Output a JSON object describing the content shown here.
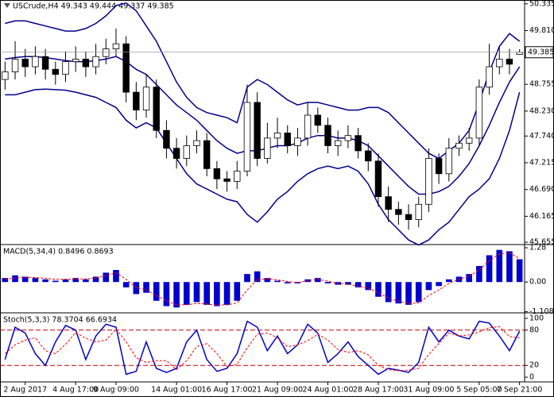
{
  "chart_data": [
    {
      "type": "candlestick",
      "title": "USCrude,H4  49.343 49.444 49.337 49.385",
      "categories": [
        null,
        null,
        "2 Aug 2017",
        null,
        null,
        null,
        null,
        "4 Aug 17:00",
        null,
        null,
        null,
        "9 Aug 09:00",
        null,
        null,
        null,
        null,
        null,
        "14 Aug 01:00",
        null,
        null,
        null,
        null,
        "16 Aug 17:00",
        null,
        null,
        null,
        null,
        "21 Aug 09:00",
        null,
        null,
        null,
        null,
        "24 Aug 01:00",
        null,
        null,
        null,
        null,
        "28 Aug 17:00",
        null,
        null,
        null,
        null,
        "31 Aug 09:00",
        null,
        null,
        null,
        null,
        "5 Sep 05:00",
        null,
        null,
        null,
        "7 Sep 21:00"
      ],
      "open": [
        48.85,
        49.0,
        49.25,
        49.1,
        49.3,
        49.05,
        48.95,
        49.2,
        49.25,
        49.1,
        49.3,
        49.45,
        49.55,
        48.6,
        48.25,
        48.7,
        47.85,
        47.5,
        47.3,
        47.55,
        47.65,
        47.1,
        46.9,
        46.85,
        47.05,
        48.4,
        47.3,
        47.7,
        47.8,
        47.55,
        47.7,
        48.15,
        47.95,
        47.55,
        47.65,
        47.75,
        47.45,
        47.25,
        46.55,
        46.3,
        46.2,
        46.1,
        46.4,
        47.3,
        47.0,
        47.5,
        47.6,
        47.7,
        48.7,
        49.1,
        49.25,
        49.343
      ],
      "high": [
        49.2,
        49.6,
        49.45,
        49.5,
        49.45,
        49.2,
        49.4,
        49.5,
        49.4,
        49.55,
        49.65,
        49.85,
        49.7,
        48.8,
        48.95,
        48.85,
        48.05,
        47.7,
        47.75,
        47.85,
        47.8,
        47.25,
        47.05,
        47.25,
        48.75,
        48.6,
        48.0,
        48.1,
        47.95,
        47.9,
        48.4,
        48.3,
        48.1,
        47.85,
        47.95,
        47.9,
        47.6,
        47.4,
        46.75,
        46.45,
        46.4,
        46.55,
        47.5,
        47.4,
        47.7,
        47.75,
        47.9,
        48.85,
        49.55,
        49.5,
        49.45,
        49.444
      ],
      "low": [
        48.65,
        48.85,
        48.9,
        48.95,
        48.85,
        48.75,
        48.8,
        49.0,
        48.9,
        48.95,
        49.15,
        49.3,
        48.4,
        48.05,
        48.1,
        47.7,
        47.3,
        47.1,
        47.15,
        47.4,
        46.95,
        46.7,
        46.65,
        46.7,
        46.95,
        47.15,
        47.2,
        47.5,
        47.4,
        47.35,
        47.55,
        47.8,
        47.4,
        47.35,
        47.5,
        47.3,
        47.05,
        46.35,
        46.05,
        46.0,
        45.9,
        45.95,
        46.25,
        46.8,
        46.85,
        47.35,
        47.45,
        47.55,
        48.55,
        48.95,
        48.95,
        49.337
      ],
      "close": [
        49.0,
        49.25,
        49.1,
        49.3,
        49.05,
        48.95,
        49.2,
        49.25,
        49.1,
        49.3,
        49.45,
        49.55,
        48.6,
        48.25,
        48.7,
        47.85,
        47.5,
        47.3,
        47.55,
        47.65,
        47.1,
        46.9,
        46.85,
        47.05,
        48.4,
        47.3,
        47.7,
        47.8,
        47.55,
        47.7,
        48.15,
        47.95,
        47.55,
        47.65,
        47.75,
        47.45,
        47.25,
        46.55,
        46.3,
        46.2,
        46.1,
        46.4,
        47.3,
        47.0,
        47.5,
        47.6,
        47.7,
        48.7,
        49.1,
        49.25,
        49.15,
        49.385
      ],
      "up_color": "#ffffff",
      "down_color": "#000000",
      "series": [
        {
          "color": "#00008b",
          "values": [
            49.95,
            50.0,
            50.0,
            49.95,
            49.9,
            49.85,
            49.8,
            49.8,
            49.85,
            49.95,
            50.1,
            50.3,
            50.35,
            50.2,
            49.9,
            49.6,
            49.2,
            48.8,
            48.5,
            48.3,
            48.2,
            48.15,
            48.1,
            48.0,
            48.7,
            48.85,
            48.75,
            48.6,
            48.45,
            48.35,
            48.4,
            48.4,
            48.35,
            48.3,
            48.25,
            48.25,
            48.3,
            48.3,
            48.2,
            48.0,
            47.8,
            47.6,
            47.4,
            47.3,
            47.45,
            47.6,
            47.85,
            48.4,
            49.0,
            49.5,
            49.75,
            49.6
          ]
        },
        {
          "color": "#00008b",
          "values": [
            49.25,
            49.28,
            49.3,
            49.3,
            49.28,
            49.25,
            49.22,
            49.2,
            49.2,
            49.22,
            49.25,
            49.3,
            49.2,
            49.05,
            48.95,
            48.75,
            48.55,
            48.35,
            48.2,
            48.05,
            47.85,
            47.65,
            47.5,
            47.4,
            47.45,
            47.45,
            47.5,
            47.55,
            47.55,
            47.6,
            47.7,
            47.75,
            47.75,
            47.7,
            47.7,
            47.65,
            47.55,
            47.35,
            47.15,
            46.95,
            46.75,
            46.6,
            46.6,
            46.65,
            46.75,
            46.95,
            47.2,
            47.55,
            47.95,
            48.4,
            48.8,
            49.1
          ]
        },
        {
          "color": "#00008b",
          "values": [
            48.55,
            48.55,
            48.6,
            48.65,
            48.66,
            48.65,
            48.64,
            48.6,
            48.55,
            48.5,
            48.4,
            48.3,
            48.05,
            47.9,
            48.0,
            47.9,
            47.6,
            47.3,
            47.0,
            46.8,
            46.7,
            46.6,
            46.5,
            46.45,
            46.2,
            46.05,
            46.25,
            46.5,
            46.65,
            46.85,
            47.0,
            47.1,
            47.15,
            47.1,
            47.15,
            47.05,
            46.8,
            46.4,
            46.1,
            45.9,
            45.7,
            45.6,
            45.7,
            45.9,
            46.05,
            46.3,
            46.55,
            46.7,
            46.9,
            47.3,
            47.85,
            48.6
          ]
        }
      ],
      "current_price": 49.385,
      "ylim": [
        45.61,
        50.41
      ],
      "yticks": [
        50.335,
        {
          "value": 49.81,
          "label": "49.810"
        },
        48.755,
        {
          "value": 48.23,
          "label": "48.230"
        },
        {
          "value": 47.74,
          "label": "47.740"
        },
        47.215,
        {
          "value": 46.69,
          "label": "46.690"
        },
        46.165,
        45.655
      ]
    },
    {
      "type": "macd",
      "title": "MACD(5,34,4) 0.8496 0.8693",
      "color": "#0000cd",
      "values": [
        0.15,
        0.25,
        0.2,
        0.15,
        0.1,
        0.05,
        0.1,
        0.15,
        0.1,
        0.2,
        0.35,
        0.45,
        -0.2,
        -0.45,
        -0.4,
        -0.7,
        -0.9,
        -0.95,
        -0.85,
        -0.75,
        -0.85,
        -0.9,
        -0.85,
        -0.7,
        0.3,
        0.4,
        0.15,
        0.05,
        -0.05,
        -0.05,
        0.1,
        0.15,
        -0.05,
        -0.1,
        -0.1,
        -0.2,
        -0.3,
        -0.55,
        -0.75,
        -0.8,
        -0.85,
        -0.75,
        -0.3,
        -0.15,
        0.1,
        0.2,
        0.3,
        0.6,
        1.0,
        1.2,
        1.15,
        0.8496
      ],
      "signal": {
        "color": "#ff0000",
        "values": [
          0.1,
          0.15,
          0.18,
          0.17,
          0.14,
          0.1,
          0.1,
          0.12,
          0.12,
          0.15,
          0.25,
          0.35,
          0.1,
          -0.2,
          -0.3,
          -0.5,
          -0.7,
          -0.85,
          -0.85,
          -0.8,
          -0.82,
          -0.86,
          -0.85,
          -0.78,
          -0.3,
          0.1,
          0.12,
          0.08,
          0.02,
          -0.02,
          0.05,
          0.1,
          0.03,
          -0.05,
          -0.08,
          -0.15,
          -0.22,
          -0.4,
          -0.6,
          -0.72,
          -0.8,
          -0.78,
          -0.5,
          -0.3,
          -0.05,
          0.1,
          0.22,
          0.45,
          0.8,
          1.05,
          1.1,
          0.8693
        ]
      },
      "ylim": [
        -1.15,
        1.37
      ],
      "yticks": [
        1.28,
        {
          "value": 0,
          "label": "0.00"
        },
        -1.1086
      ]
    },
    {
      "type": "stochastic",
      "title": "Stoch(5,3,3) 78.3704 66.6934",
      "series": [
        {
          "color": "#0000cd",
          "dashed": false,
          "values": [
            30,
            85,
            75,
            40,
            20,
            60,
            88,
            80,
            30,
            70,
            90,
            85,
            5,
            10,
            60,
            15,
            8,
            15,
            60,
            80,
            30,
            10,
            15,
            40,
            95,
            85,
            45,
            70,
            40,
            55,
            90,
            75,
            25,
            40,
            60,
            35,
            20,
            5,
            15,
            12,
            8,
            25,
            85,
            60,
            80,
            70,
            65,
            95,
            92,
            70,
            45,
            78.3704
          ]
        },
        {
          "color": "#ff0000",
          "dashed": true,
          "values": [
            40,
            55,
            63,
            67,
            45,
            40,
            56,
            76,
            66,
            60,
            63,
            82,
            60,
            33,
            25,
            28,
            28,
            13,
            28,
            52,
            57,
            40,
            18,
            22,
            50,
            73,
            75,
            67,
            52,
            55,
            62,
            73,
            63,
            47,
            42,
            45,
            38,
            20,
            13,
            11,
            12,
            15,
            39,
            57,
            75,
            70,
            72,
            77,
            84,
            86,
            69,
            66.6934
          ]
        }
      ],
      "levels": [
        20,
        80
      ],
      "level_color": "#c00000",
      "ylim": [
        -8,
        108
      ],
      "yticks": [
        100,
        80,
        20,
        0
      ]
    }
  ]
}
